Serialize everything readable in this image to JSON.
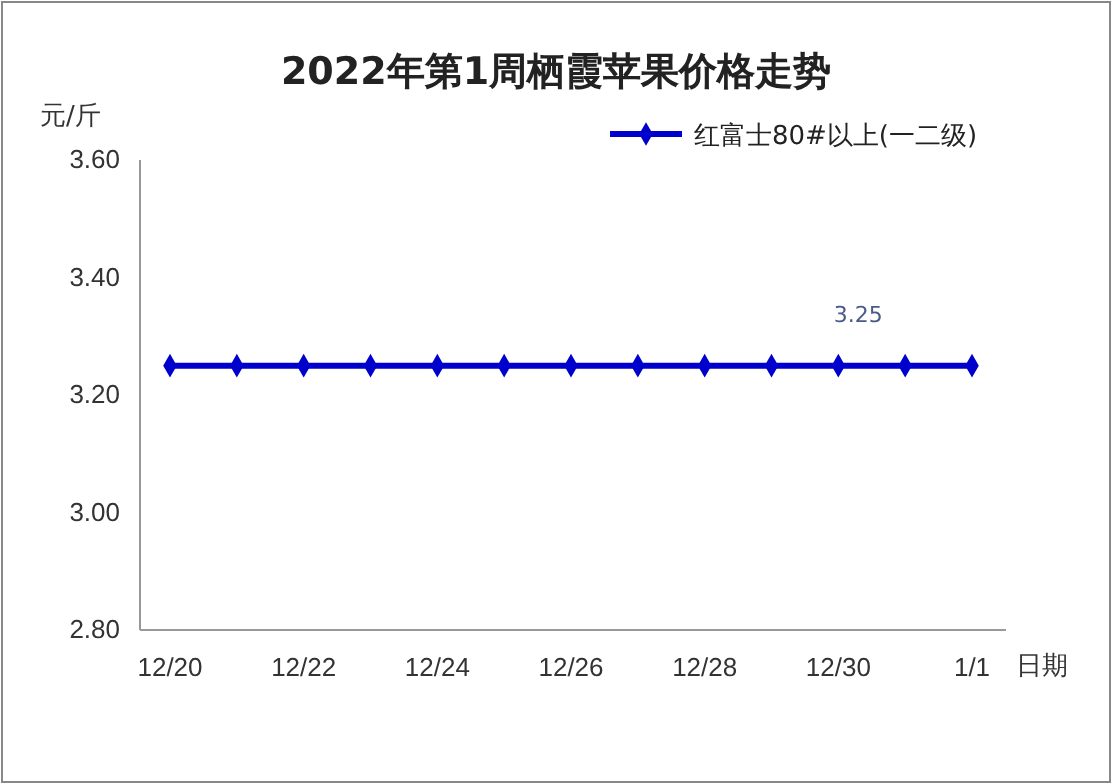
{
  "chart_data": {
    "type": "line",
    "title": "2022年第1周栖霞苹果价格走势",
    "ylabel": "元/斤",
    "xlabel": "日期",
    "categories": [
      "12/20",
      null,
      "12/22",
      null,
      "12/24",
      null,
      "12/26",
      null,
      "12/28",
      null,
      "12/30",
      null,
      "1/1"
    ],
    "series": [
      {
        "name": "红富士80#以上(一二级)",
        "color": "#0000cc",
        "values": [
          3.25,
          3.25,
          3.25,
          3.25,
          3.25,
          3.25,
          3.25,
          3.25,
          3.25,
          3.25,
          3.25,
          3.25,
          3.25
        ],
        "value_labels": [
          null,
          null,
          null,
          null,
          null,
          null,
          null,
          null,
          null,
          null,
          "3.25",
          null,
          null
        ]
      }
    ],
    "ylim": [
      2.8,
      3.6
    ],
    "yticks": [
      {
        "value": 2.8,
        "label": "2.80"
      },
      {
        "value": 3.0,
        "label": "3.00"
      },
      {
        "value": 3.2,
        "label": "3.20"
      },
      {
        "value": 3.4,
        "label": "3.40"
      },
      {
        "value": 3.6,
        "label": "3.60"
      }
    ],
    "legend": "top right",
    "marker": "diamond",
    "grid": false
  }
}
